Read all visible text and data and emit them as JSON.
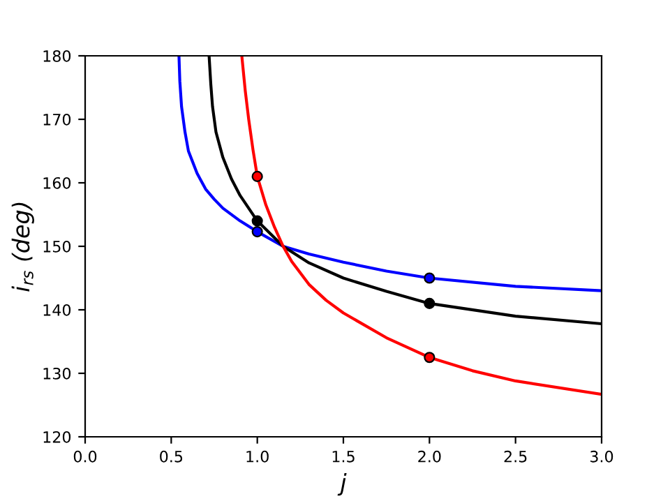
{
  "chart_data": {
    "type": "line",
    "xlabel": "j",
    "ylabel": "i$_{rs}$ (deg)",
    "xlim": [
      0,
      3
    ],
    "ylim": [
      120,
      180
    ],
    "xticks": [
      {
        "value": 0,
        "label": "0.0"
      },
      0.5,
      {
        "value": 1,
        "label": "1.0"
      },
      1.5,
      {
        "value": 2,
        "label": "2.0"
      },
      2.5,
      {
        "value": 3,
        "label": "3.0"
      }
    ],
    "yticks": [
      120,
      130,
      140,
      150,
      160,
      170,
      180
    ],
    "grid": false,
    "legend": false,
    "marker": "none",
    "line_style": "solid",
    "series": [
      {
        "color": "#0000ff",
        "x": [
          0.545,
          0.55,
          0.56,
          0.58,
          0.6,
          0.65,
          0.7,
          0.75,
          0.8,
          0.9,
          1.0,
          1.15,
          1.3,
          1.5,
          1.75,
          2.0,
          2.5,
          3.0
        ],
        "values": [
          180,
          176,
          172,
          168,
          165,
          161.5,
          159,
          157.4,
          156,
          154,
          152.3,
          150,
          148.8,
          147.5,
          146.1,
          145,
          143.7,
          143.0
        ]
      },
      {
        "color": "#000000",
        "x": [
          0.72,
          0.73,
          0.74,
          0.76,
          0.8,
          0.85,
          0.9,
          1.0,
          1.15,
          1.3,
          1.5,
          1.75,
          2.0,
          2.5,
          3.0
        ],
        "values": [
          180,
          175.5,
          172,
          168,
          164,
          160.6,
          158,
          154,
          150,
          147.4,
          145,
          142.9,
          141,
          139,
          137.8
        ]
      },
      {
        "color": "#ff0000",
        "x": [
          0.91,
          0.93,
          0.95,
          0.975,
          1.0,
          1.05,
          1.1,
          1.15,
          1.2,
          1.3,
          1.4,
          1.5,
          1.75,
          2.0,
          2.25,
          2.5,
          3.0
        ],
        "values": [
          180,
          174.5,
          170,
          165.2,
          161,
          156.5,
          153,
          150,
          147.6,
          144,
          141.5,
          139.5,
          135.6,
          132.5,
          130.4,
          128.8,
          126.7
        ]
      },
      {
        "type": "scatter",
        "marker": "circle",
        "color": "#0000ff",
        "x": [
          1,
          2
        ],
        "values": [
          152.3,
          145
        ]
      },
      {
        "type": "scatter",
        "marker": "circle",
        "color": "#000000",
        "x": [
          1,
          2
        ],
        "values": [
          154,
          141
        ]
      },
      {
        "type": "scatter",
        "marker": "circle",
        "color": "#ff0000",
        "x": [
          1,
          2
        ],
        "values": [
          161,
          132.5
        ]
      }
    ]
  }
}
